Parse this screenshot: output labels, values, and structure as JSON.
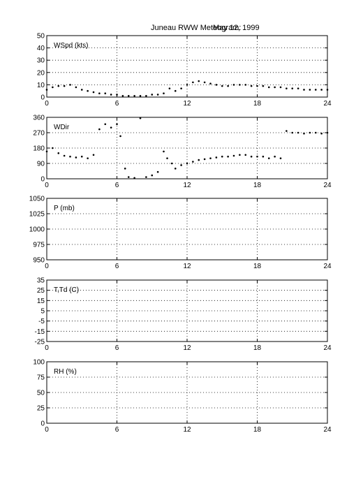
{
  "figure": {
    "title": "Juneau RWW Meteogram:",
    "date": "May 12, 1999"
  },
  "chart_data": [
    {
      "id": "wspd",
      "type": "scatter",
      "label": "WSpd (kts)",
      "x_ticks": [
        "0",
        "6",
        "12",
        "18",
        "24"
      ],
      "xlim": [
        0,
        24
      ],
      "y_ticks": [
        "0",
        "10",
        "20",
        "30",
        "40",
        "50"
      ],
      "ylim": [
        0,
        50
      ],
      "grid": true,
      "series": [
        {
          "x": [
            0,
            0.5,
            1,
            1.5,
            2,
            2.5,
            3,
            3.5,
            4,
            4.5,
            5,
            5.5,
            6,
            6.5,
            7,
            7.5,
            8,
            8.5,
            9,
            9.5,
            10,
            10.5,
            11,
            11.5,
            12,
            12.5,
            13,
            13.5,
            14,
            14.5,
            15,
            15.5,
            16,
            16.5,
            17,
            17.5,
            18,
            18.5,
            19,
            19.5,
            20,
            20.5,
            21,
            21.5,
            22,
            22.5,
            23,
            23.5,
            24
          ],
          "y": [
            6,
            8,
            9,
            9,
            10,
            8,
            6,
            5,
            4,
            3,
            3,
            2,
            2,
            1,
            1,
            1,
            1,
            1,
            2,
            2,
            3,
            7,
            5,
            7,
            10,
            12,
            13,
            12,
            11,
            10,
            9,
            9,
            10,
            10,
            10,
            9,
            9,
            9,
            8,
            8,
            8,
            7,
            7,
            7,
            6,
            6,
            6,
            6,
            6
          ]
        }
      ]
    },
    {
      "id": "wdir",
      "type": "scatter",
      "label": "WDir",
      "x_ticks": [
        "0",
        "6",
        "12",
        "18",
        "24"
      ],
      "xlim": [
        0,
        24
      ],
      "y_ticks": [
        "0",
        "90",
        "180",
        "270",
        "360"
      ],
      "ylim": [
        0,
        360
      ],
      "grid": true,
      "series": [
        {
          "x": [
            0,
            0.5,
            1,
            1.5,
            2,
            2.5,
            3,
            3.5,
            4,
            4.5,
            5,
            5.5,
            6,
            6.3,
            6.7,
            7,
            7.5,
            8,
            8.5,
            9,
            9.5,
            10,
            10.3,
            10.7,
            11,
            11.5,
            12,
            12.5,
            13,
            13.5,
            14,
            14.5,
            15,
            15.5,
            16,
            16.5,
            17,
            17.5,
            18,
            18.5,
            19,
            19.5,
            20,
            20.5,
            21,
            21.5,
            22,
            22.5,
            23,
            23.5,
            24
          ],
          "y": [
            160,
            180,
            150,
            135,
            130,
            125,
            130,
            120,
            140,
            290,
            320,
            300,
            320,
            250,
            60,
            10,
            5,
            355,
            10,
            20,
            40,
            160,
            120,
            90,
            60,
            80,
            90,
            100,
            110,
            115,
            120,
            125,
            130,
            130,
            135,
            140,
            140,
            130,
            130,
            130,
            120,
            130,
            120,
            280,
            270,
            270,
            265,
            270,
            270,
            265,
            270
          ]
        }
      ]
    },
    {
      "id": "pres",
      "type": "scatter",
      "label": "P (mb)",
      "x_ticks": [
        "0",
        "6",
        "12",
        "18",
        "24"
      ],
      "xlim": [
        0,
        24
      ],
      "y_ticks": [
        "950",
        "975",
        "1000",
        "1025",
        "1050"
      ],
      "ylim": [
        950,
        1050
      ],
      "grid": true,
      "series": []
    },
    {
      "id": "temp",
      "type": "scatter",
      "label": "T,Td (C)",
      "x_ticks": [
        "0",
        "6",
        "12",
        "18",
        "24"
      ],
      "xlim": [
        0,
        24
      ],
      "y_ticks": [
        "-25",
        "-15",
        "-5",
        "5",
        "15",
        "25",
        "35"
      ],
      "ylim": [
        -25,
        35
      ],
      "grid": true,
      "series": []
    },
    {
      "id": "rh",
      "type": "scatter",
      "label": "RH (%)",
      "x_ticks": [
        "0",
        "6",
        "12",
        "18",
        "24"
      ],
      "xlim": [
        0,
        24
      ],
      "y_ticks": [
        "0",
        "25",
        "50",
        "75",
        "100"
      ],
      "ylim": [
        0,
        100
      ],
      "grid": true,
      "series": []
    }
  ]
}
